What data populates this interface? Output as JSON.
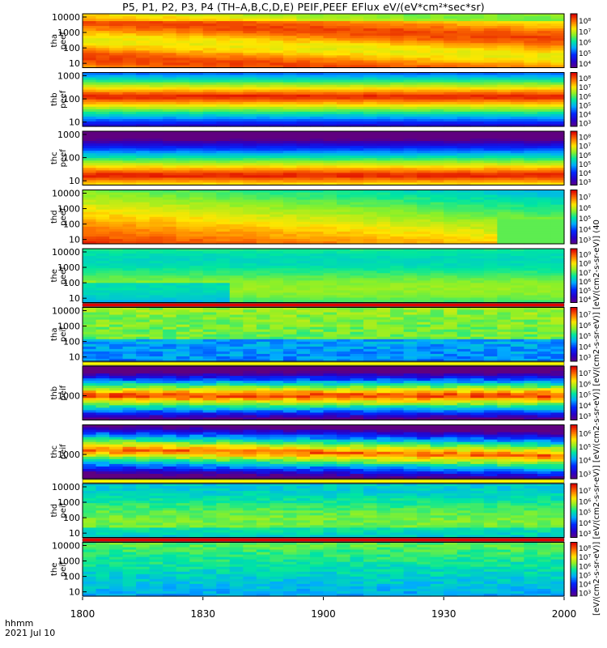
{
  "title": "P5, P1, P2, P3, P4 (TH–A,B,C,D,E) PEIF,PEEF EFlux eV/(eV*cm²*sec*sr)",
  "colorbar_label": "[eV/(cm2-s-sr-eV)] [eV/(cm2-s-sr-eV)] [eV/(cm2-s-sr-eV)] [eV/(cm2-s-sr-eV)] [eV/(cm2-s-sr-eV)] (40",
  "x_axis": {
    "row1_label": "hhmm",
    "row2_label": "2021 Jul 10",
    "ticks": [
      "1800",
      "1830",
      "1900",
      "1930",
      "2000"
    ]
  },
  "chart_data": {
    "type": "heatmap",
    "title": "P5, P1, P2, P3, P4 (TH–A,B,C,D,E) PEIF,PEEF EFlux eV/(eV*cm²*sec*sr)",
    "x_range_hhmm": [
      "1800",
      "2000"
    ],
    "panels": [
      {
        "probe": "tha",
        "label": [
          "tha",
          "peef"
        ],
        "yticks": [
          "10",
          "100",
          "1000",
          "10000"
        ],
        "cbar_ticks": [
          "10⁴",
          "10⁵",
          "10⁶",
          "10⁷",
          "10⁸"
        ],
        "pattern": "tha_peef",
        "flag": "none"
      },
      {
        "probe": "thb",
        "label": [
          "thb",
          "peef"
        ],
        "yticks": [
          "10",
          "100",
          "1000"
        ],
        "cbar_ticks": [
          "10³",
          "10⁴",
          "10⁵",
          "10⁶",
          "10⁷",
          "10⁸"
        ],
        "pattern": "e_mid",
        "flag": "none"
      },
      {
        "probe": "thc",
        "label": [
          "thc",
          "peef"
        ],
        "yticks": [
          "10",
          "100",
          "1000"
        ],
        "cbar_ticks": [
          "10³",
          "10⁴",
          "10⁵",
          "10⁶",
          "10⁷",
          "10⁸"
        ],
        "pattern": "e_low",
        "flag": "none"
      },
      {
        "probe": "thd",
        "label": [
          "thd",
          "peef"
        ],
        "yticks": [
          "10",
          "100",
          "1000",
          "10000"
        ],
        "cbar_ticks": [
          "10³",
          "10⁴",
          "10⁵",
          "10⁶",
          "10⁷"
        ],
        "pattern": "thd_peef",
        "flag": "none"
      },
      {
        "probe": "the",
        "label": [
          "the",
          "peef"
        ],
        "yticks": [
          "10",
          "100",
          "1000",
          "10000"
        ],
        "cbar_ticks": [
          "10⁴",
          "10⁵",
          "10⁶",
          "10⁷",
          "10⁸",
          "10⁹"
        ],
        "pattern": "the_peef",
        "flag": "red"
      },
      {
        "probe": "tha",
        "label": [
          "tha",
          "peif"
        ],
        "yticks": [
          "10",
          "100",
          "1000",
          "10000"
        ],
        "cbar_ticks": [
          "10³",
          "10⁴",
          "10⁵",
          "10⁶",
          "10⁷"
        ],
        "pattern": "ion_lowblue",
        "flag": "yellow"
      },
      {
        "probe": "thb",
        "label": [
          "thb",
          "peif"
        ],
        "yticks": [
          "1000"
        ],
        "cbar_ticks": [
          "10³",
          "10⁴",
          "10⁵",
          "10⁶",
          "10⁷"
        ],
        "pattern": "ion_peak",
        "flag": "none"
      },
      {
        "probe": "thc",
        "label": [
          "thc",
          "peif"
        ],
        "yticks": [
          "1000"
        ],
        "cbar_ticks": [
          "10³",
          "10⁴",
          "10⁵",
          "10⁶"
        ],
        "pattern": "ion_peak2",
        "flag": "yellow"
      },
      {
        "probe": "thd",
        "label": [
          "thd",
          "peif"
        ],
        "yticks": [
          "10",
          "100",
          "1000",
          "10000"
        ],
        "cbar_ticks": [
          "10³",
          "10⁴",
          "10⁵",
          "10⁶",
          "10⁷"
        ],
        "pattern": "ion_green",
        "flag": "red"
      },
      {
        "probe": "the",
        "label": [
          "the",
          "peif"
        ],
        "yticks": [
          "10",
          "100",
          "1000",
          "10000"
        ],
        "cbar_ticks": [
          "10³",
          "10⁴",
          "10⁵",
          "10⁶",
          "10⁷",
          "10⁸"
        ],
        "pattern": "ion_blue",
        "flag": "none"
      }
    ]
  }
}
